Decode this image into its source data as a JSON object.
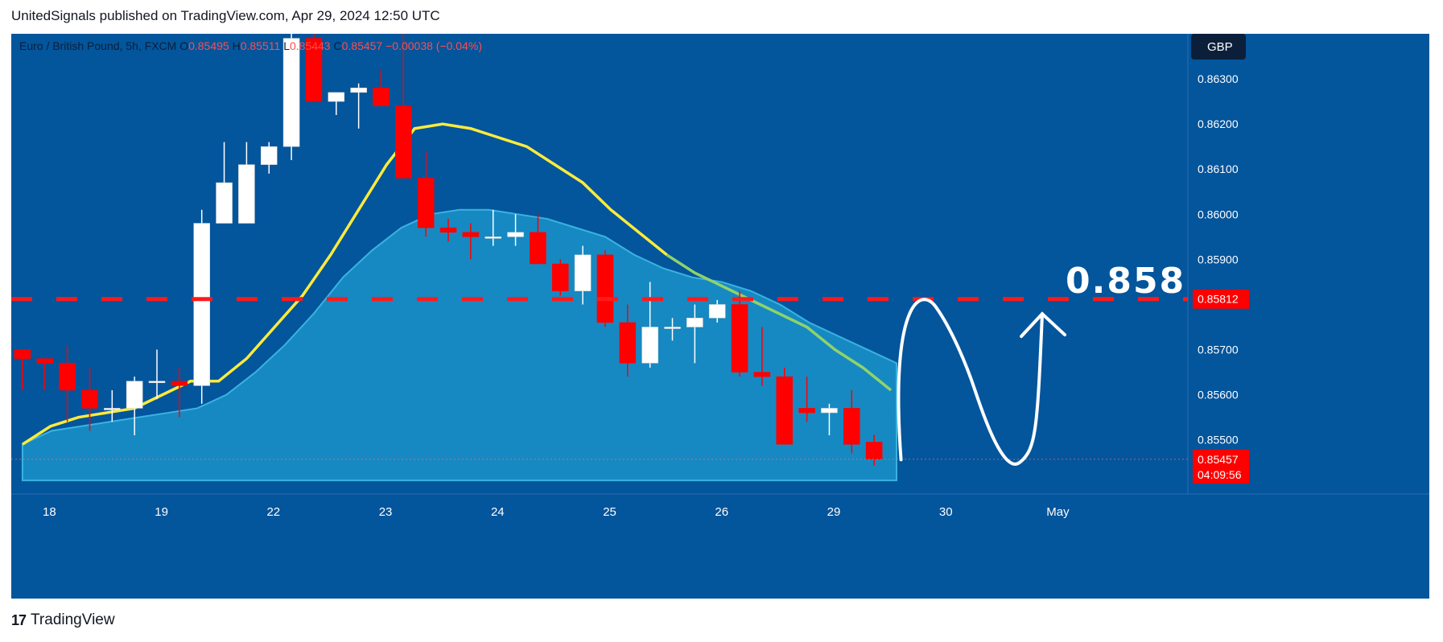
{
  "header": {
    "published": "UnitedSignals published on TradingView.com, Apr 29, 2024 12:50 UTC"
  },
  "footer": {
    "brand": "TradingView"
  },
  "symbol": {
    "name": "Euro / British Pound, 5h, FXCM",
    "o_label": "O",
    "o": "0.85495",
    "h_label": "H",
    "h": "0.85511",
    "l_label": "L",
    "l": "0.85443",
    "c_label": "C",
    "c": "0.85457",
    "change": "−0.00038 (−0.04%)"
  },
  "currency_badge": "GBP",
  "annotation": {
    "text": "0.8581"
  },
  "price_tags": {
    "level": "0.85812",
    "last": "0.85457",
    "countdown": "04:09:56"
  },
  "colors": {
    "background": "#03559c",
    "up": "#ffffff",
    "down": "#ff0000",
    "ma_fast": "#ffeb3b",
    "ma_fast_late": "#8fd36a",
    "cloud": "#1e9bcf",
    "level_line": "#ff1a1a",
    "text": "#131722"
  },
  "chart_data": {
    "type": "candlestick",
    "ylim": [
      0.8538,
      0.864
    ],
    "y_ticks": [
      "0.86300",
      "0.86200",
      "0.86100",
      "0.86000",
      "0.85900",
      "0.85700",
      "0.85600",
      "0.85500"
    ],
    "y_tick_values": [
      0.863,
      0.862,
      0.861,
      0.86,
      0.859,
      0.857,
      0.856,
      0.855
    ],
    "x_ticks": [
      {
        "label": "18",
        "index": 1.2
      },
      {
        "label": "19",
        "index": 6.2
      },
      {
        "label": "22",
        "index": 11.2
      },
      {
        "label": "23",
        "index": 16.2
      },
      {
        "label": "24",
        "index": 21.2
      },
      {
        "label": "25",
        "index": 26.2
      },
      {
        "label": "26",
        "index": 31.2
      },
      {
        "label": "29",
        "index": 36.2
      },
      {
        "label": "30",
        "index": 41.2
      },
      {
        "label": "May",
        "index": 46.2
      }
    ],
    "bar_count_range": [
      -0.5,
      52
    ],
    "candles": [
      {
        "o": 0.857,
        "h": 0.857,
        "l": 0.8561,
        "c": 0.8568
      },
      {
        "o": 0.8568,
        "h": 0.8568,
        "l": 0.8561,
        "c": 0.8567
      },
      {
        "o": 0.8567,
        "h": 0.8571,
        "l": 0.8554,
        "c": 0.8561
      },
      {
        "o": 0.8561,
        "h": 0.8566,
        "l": 0.8552,
        "c": 0.8557
      },
      {
        "o": 0.8557,
        "h": 0.8561,
        "l": 0.8554,
        "c": 0.8557
      },
      {
        "o": 0.8557,
        "h": 0.8564,
        "l": 0.8551,
        "c": 0.8563
      },
      {
        "o": 0.8563,
        "h": 0.857,
        "l": 0.8559,
        "c": 0.8563
      },
      {
        "o": 0.8563,
        "h": 0.8566,
        "l": 0.8555,
        "c": 0.8562
      },
      {
        "o": 0.8562,
        "h": 0.8601,
        "l": 0.8558,
        "c": 0.8598
      },
      {
        "o": 0.8598,
        "h": 0.8616,
        "l": 0.8598,
        "c": 0.8607
      },
      {
        "o": 0.8598,
        "h": 0.8616,
        "l": 0.8598,
        "c": 0.8611
      },
      {
        "o": 0.8611,
        "h": 0.8616,
        "l": 0.8609,
        "c": 0.8615
      },
      {
        "o": 0.8615,
        "h": 0.8641,
        "l": 0.8612,
        "c": 0.8639
      },
      {
        "o": 0.8639,
        "h": 0.8642,
        "l": 0.8625,
        "c": 0.8625
      },
      {
        "o": 0.8625,
        "h": 0.8627,
        "l": 0.8622,
        "c": 0.8627
      },
      {
        "o": 0.8627,
        "h": 0.8629,
        "l": 0.8619,
        "c": 0.8628
      },
      {
        "o": 0.8628,
        "h": 0.8632,
        "l": 0.8624,
        "c": 0.8624
      },
      {
        "o": 0.8624,
        "h": 0.8645,
        "l": 0.8608,
        "c": 0.8608
      },
      {
        "o": 0.8608,
        "h": 0.8614,
        "l": 0.8595,
        "c": 0.8597
      },
      {
        "o": 0.8597,
        "h": 0.8599,
        "l": 0.8594,
        "c": 0.8596
      },
      {
        "o": 0.8596,
        "h": 0.8598,
        "l": 0.859,
        "c": 0.8595
      },
      {
        "o": 0.8595,
        "h": 0.8601,
        "l": 0.8593,
        "c": 0.8595
      },
      {
        "o": 0.8595,
        "h": 0.86,
        "l": 0.8593,
        "c": 0.8596
      },
      {
        "o": 0.8596,
        "h": 0.86,
        "l": 0.8589,
        "c": 0.8589
      },
      {
        "o": 0.8589,
        "h": 0.859,
        "l": 0.8582,
        "c": 0.8583
      },
      {
        "o": 0.8583,
        "h": 0.8593,
        "l": 0.858,
        "c": 0.8591
      },
      {
        "o": 0.8591,
        "h": 0.8592,
        "l": 0.8575,
        "c": 0.8576
      },
      {
        "o": 0.8576,
        "h": 0.858,
        "l": 0.8564,
        "c": 0.8567
      },
      {
        "o": 0.8567,
        "h": 0.8585,
        "l": 0.8566,
        "c": 0.8575
      },
      {
        "o": 0.8575,
        "h": 0.8577,
        "l": 0.8572,
        "c": 0.8575
      },
      {
        "o": 0.8575,
        "h": 0.858,
        "l": 0.8567,
        "c": 0.8577
      },
      {
        "o": 0.8577,
        "h": 0.8581,
        "l": 0.8576,
        "c": 0.858
      },
      {
        "o": 0.858,
        "h": 0.8583,
        "l": 0.8564,
        "c": 0.8565
      },
      {
        "o": 0.8565,
        "h": 0.8575,
        "l": 0.8562,
        "c": 0.8564
      },
      {
        "o": 0.8564,
        "h": 0.8566,
        "l": 0.8549,
        "c": 0.8549
      },
      {
        "o": 0.8557,
        "h": 0.8564,
        "l": 0.8554,
        "c": 0.8556
      },
      {
        "o": 0.8556,
        "h": 0.8558,
        "l": 0.8551,
        "c": 0.8557
      },
      {
        "o": 0.8557,
        "h": 0.8561,
        "l": 0.8547,
        "c": 0.8549
      },
      {
        "o": 0.85495,
        "h": 0.85511,
        "l": 0.85443,
        "c": 0.85457
      }
    ],
    "ma_fast": [
      0.8549,
      0.8553,
      0.8555,
      0.8556,
      0.8557,
      0.856,
      0.8563,
      0.8563,
      0.8568,
      0.8575,
      0.8582,
      0.8591,
      0.8601,
      0.8611,
      0.8619,
      0.862,
      0.8619,
      0.8617,
      0.8615,
      0.8611,
      0.8607,
      0.8601,
      0.8596,
      0.8591,
      0.8587,
      0.8584,
      0.8581,
      0.8578,
      0.8575,
      0.857,
      0.8566,
      0.8561
    ],
    "ma_fast_start_index": 0,
    "ma_fast_step": 1.25,
    "cloud_top": [
      0.8549,
      0.8552,
      0.8553,
      0.8554,
      0.8555,
      0.8556,
      0.8557,
      0.856,
      0.8565,
      0.8571,
      0.8578,
      0.8586,
      0.8592,
      0.8597,
      0.86,
      0.8601,
      0.8601,
      0.86,
      0.8599,
      0.8597,
      0.8595,
      0.8591,
      0.8588,
      0.8586,
      0.8585,
      0.8583,
      0.858,
      0.8576,
      0.8573,
      0.857,
      0.8567
    ],
    "cloud_step": 1.3,
    "cloud_bottom": 0.8541,
    "level_price": 0.85812,
    "last_price": 0.85457,
    "projection": [
      {
        "i": 39.2,
        "p": 0.85456
      },
      {
        "i": 40.4,
        "p": 0.8578
      },
      {
        "i": 42.5,
        "p": 0.8561
      },
      {
        "i": 44.5,
        "p": 0.8545
      },
      {
        "i": 45.5,
        "p": 0.8579
      }
    ]
  }
}
